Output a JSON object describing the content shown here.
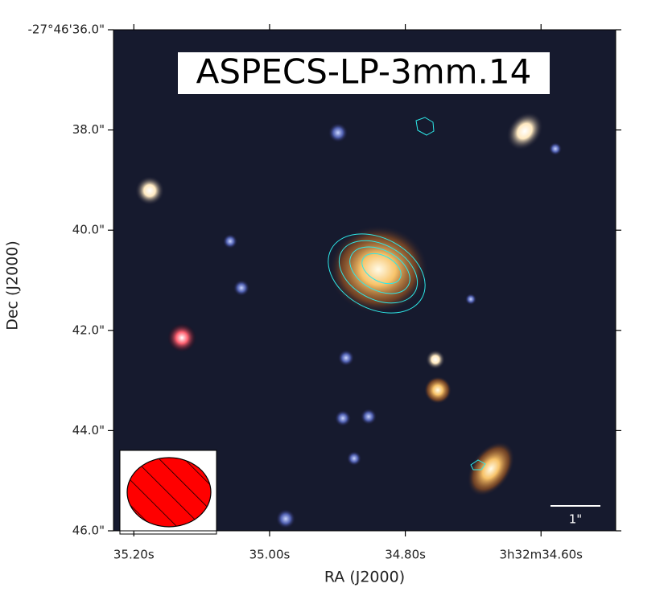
{
  "chart_data": {
    "type": "image",
    "title": "ASPECS-LP-3mm.14",
    "x_label": "RA (J2000)",
    "y_label": "Dec (J2000)",
    "scale_bar_label": "1\"",
    "xlim": [
      35.23,
      34.49
    ],
    "ylim": [
      46.0,
      36.0
    ],
    "xticks": [
      {
        "value": 35.2,
        "label": "35.20s"
      },
      {
        "value": 35.0,
        "label": "35.00s"
      },
      {
        "value": 34.8,
        "label": "34.80s"
      },
      {
        "value": 34.6,
        "label": "3h32m34.60s"
      }
    ],
    "yticks": [
      {
        "value": 36.0,
        "label": "-27°46'36.0\""
      },
      {
        "value": 38.0,
        "label": "38.0\""
      },
      {
        "value": 40.0,
        "label": "40.0\""
      },
      {
        "value": 42.0,
        "label": "42.0\""
      },
      {
        "value": 44.0,
        "label": "44.0\""
      },
      {
        "value": 46.0,
        "label": "46.0\""
      }
    ]
  }
}
